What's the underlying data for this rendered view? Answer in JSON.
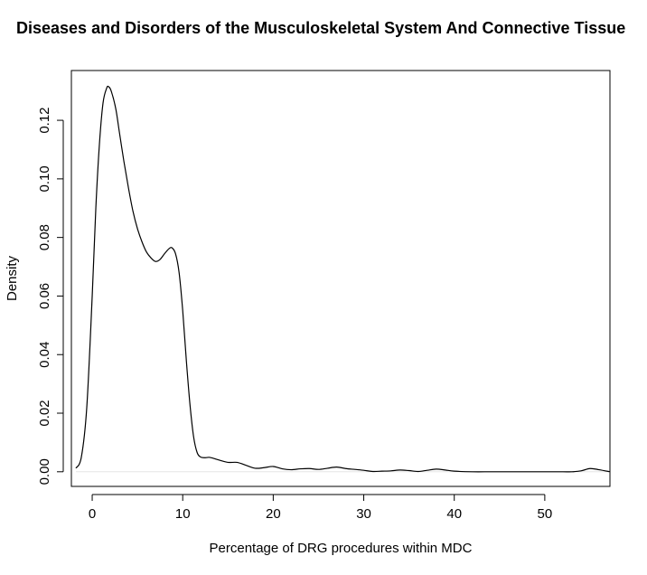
{
  "chart_data": {
    "type": "line",
    "title": "Diseases and Disorders of the Musculoskeletal System And Connective Tissue",
    "xlabel": "Percentage of DRG procedures within MDC",
    "ylabel": "Density",
    "xlim": [
      -2.3,
      57.2
    ],
    "ylim": [
      -0.005,
      0.137
    ],
    "x_ticks": [
      0,
      10,
      20,
      30,
      40,
      50
    ],
    "x_tick_labels": [
      "0",
      "10",
      "20",
      "30",
      "40",
      "50"
    ],
    "y_ticks": [
      0.0,
      0.02,
      0.04,
      0.06,
      0.08,
      0.1,
      0.12
    ],
    "y_tick_labels": [
      "0.00",
      "0.02",
      "0.04",
      "0.06",
      "0.08",
      "0.10",
      "0.12"
    ],
    "grid": false,
    "line_color": "#000000",
    "baseline_color": "#e6e6e6",
    "series": [
      {
        "x": [
          -1.8,
          -1.2,
          -0.6,
          0.0,
          0.4,
          0.8,
          1.2,
          1.6,
          1.8,
          2.1,
          2.6,
          3.0,
          3.5,
          4.0,
          4.5,
          5.0,
          5.5,
          6.0,
          6.5,
          7.0,
          7.5,
          8.0,
          8.5,
          8.8,
          9.2,
          9.6,
          10.0,
          10.4,
          10.8,
          11.2,
          11.6,
          12.0,
          12.5,
          13.0,
          14.0,
          15.0,
          16.0,
          17.0,
          18.0,
          19.0,
          20.0,
          21.0,
          22.0,
          23.0,
          24.0,
          25.0,
          26.0,
          27.0,
          28.0,
          29.0,
          30.0,
          31.0,
          32.0,
          33.0,
          34.0,
          35.0,
          36.0,
          37.0,
          38.0,
          39.0,
          40.0,
          42.0,
          44.0,
          46.0,
          48.0,
          50.0,
          52.0,
          53.0,
          54.0,
          55.0,
          56.0,
          57.2
        ],
        "y": [
          0.0012,
          0.005,
          0.022,
          0.06,
          0.09,
          0.112,
          0.126,
          0.131,
          0.1315,
          0.13,
          0.124,
          0.116,
          0.106,
          0.097,
          0.089,
          0.083,
          0.0785,
          0.075,
          0.073,
          0.0718,
          0.0725,
          0.0745,
          0.0762,
          0.0765,
          0.0745,
          0.068,
          0.055,
          0.038,
          0.023,
          0.012,
          0.0065,
          0.005,
          0.0048,
          0.0049,
          0.004,
          0.0032,
          0.0032,
          0.0022,
          0.0012,
          0.0014,
          0.0018,
          0.001,
          0.0007,
          0.001,
          0.0011,
          0.0008,
          0.0012,
          0.0016,
          0.0011,
          0.0008,
          0.0005,
          0.0001,
          0.0002,
          0.0003,
          0.0006,
          0.0004,
          0.0001,
          0.0005,
          0.0009,
          0.0006,
          0.0002,
          0.0,
          0.0,
          0.0,
          0.0,
          0.0,
          0.0,
          0.0,
          0.0003,
          0.0011,
          0.0007,
          0.0
        ]
      }
    ]
  }
}
